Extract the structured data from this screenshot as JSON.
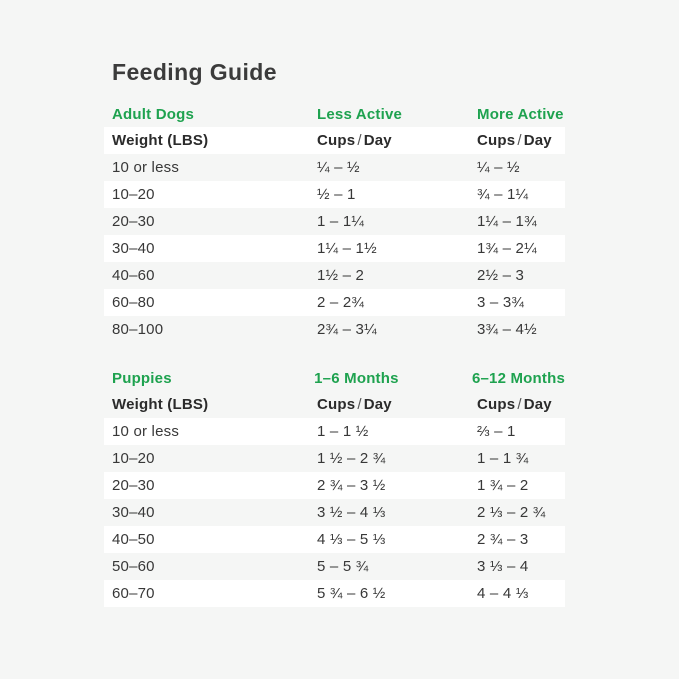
{
  "page": {
    "title": "Feeding Guide",
    "colors": {
      "page_background": "#f5f6f5",
      "row_highlight": "#ffffff",
      "accent_green": "#1ea24f",
      "text_dark": "#3b3b3b"
    }
  },
  "chart_data": [
    {
      "type": "table",
      "section_label": "Adult Dogs",
      "col_group_labels": [
        "Less Active",
        "More Active"
      ],
      "header": {
        "col1": "Weight (LBS)",
        "cups": "Cups",
        "slash": "/",
        "day": "Day"
      },
      "rows": [
        {
          "weight": "10 or less",
          "less_active": "¼ – ½",
          "more_active": "¼ – ½"
        },
        {
          "weight": "10–20",
          "less_active": "½ – 1",
          "more_active": "¾ – 1¼"
        },
        {
          "weight": "20–30",
          "less_active": "1 – 1¼",
          "more_active": "1¼ – 1¾"
        },
        {
          "weight": "30–40",
          "less_active": "1¼ – 1½",
          "more_active": "1¾ – 2¼"
        },
        {
          "weight": "40–60",
          "less_active": "1½ – 2",
          "more_active": "2½ – 3"
        },
        {
          "weight": "60–80",
          "less_active": "2 – 2¾",
          "more_active": "3 – 3¾"
        },
        {
          "weight": "80–100",
          "less_active": "2¾ – 3¼",
          "more_active": "3¾ – 4½"
        }
      ]
    },
    {
      "type": "table",
      "section_label": "Puppies",
      "col_group_labels": [
        "1–6 Months",
        "6–12 Months"
      ],
      "header": {
        "col1": "Weight (LBS)",
        "cups": "Cups",
        "slash": "/",
        "day": "Day"
      },
      "rows": [
        {
          "weight": "10 or less",
          "months_1_6": "1 – 1 ½",
          "months_6_12": "⅔ – 1"
        },
        {
          "weight": "10–20",
          "months_1_6": "1 ½ – 2 ¾",
          "months_6_12": "1 – 1 ¾"
        },
        {
          "weight": "20–30",
          "months_1_6": "2 ¾ – 3 ½",
          "months_6_12": "1 ¾ – 2"
        },
        {
          "weight": "30–40",
          "months_1_6": "3 ½ – 4 ⅓",
          "months_6_12": "2 ⅓ – 2 ¾"
        },
        {
          "weight": "40–50",
          "months_1_6": "4 ⅓ – 5 ⅓",
          "months_6_12": "2 ¾ – 3"
        },
        {
          "weight": "50–60",
          "months_1_6": "5 – 5 ¾",
          "months_6_12": "3 ⅓ – 4"
        },
        {
          "weight": "60–70",
          "months_1_6": "5 ¾ – 6 ½",
          "months_6_12": "4 – 4 ⅓"
        }
      ]
    }
  ]
}
